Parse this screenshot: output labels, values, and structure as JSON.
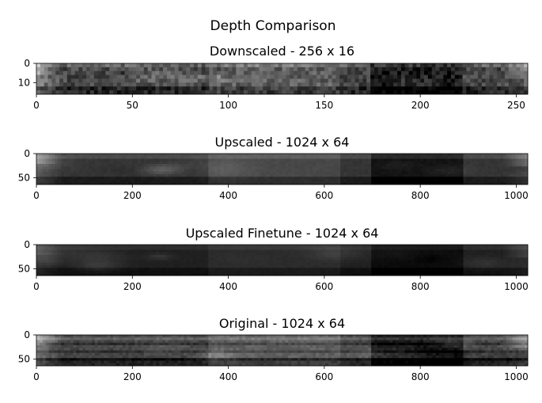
{
  "figure": {
    "title": "Depth Comparison"
  },
  "chart_data": [
    {
      "type": "heatmap",
      "title": "Downscaled - 256 x 16",
      "xlabel": "",
      "ylabel": "",
      "colormap": "gray",
      "width": 256,
      "height": 16,
      "xlim": [
        0,
        256
      ],
      "ylim": [
        16,
        0
      ],
      "xticks": [
        0,
        50,
        100,
        150,
        200,
        250
      ],
      "yticks": [
        0,
        10
      ],
      "brightness": 1.0,
      "noise": "coarse"
    },
    {
      "type": "heatmap",
      "title": "Upscaled - 1024 x 64",
      "xlabel": "",
      "ylabel": "",
      "colormap": "gray",
      "width": 1024,
      "height": 64,
      "xlim": [
        0,
        1024
      ],
      "ylim": [
        64,
        0
      ],
      "xticks": [
        0,
        200,
        400,
        600,
        800,
        1000
      ],
      "yticks": [
        0,
        50
      ],
      "brightness": 0.75,
      "noise": "smooth"
    },
    {
      "type": "heatmap",
      "title": "Upscaled Finetune - 1024 x 64",
      "xlabel": "",
      "ylabel": "",
      "colormap": "gray",
      "width": 1024,
      "height": 64,
      "xlim": [
        0,
        1024
      ],
      "ylim": [
        64,
        0
      ],
      "xticks": [
        0,
        200,
        400,
        600,
        800,
        1000
      ],
      "yticks": [
        0,
        50
      ],
      "brightness": 0.45,
      "noise": "smooth"
    },
    {
      "type": "heatmap",
      "title": "Original - 1024 x 64",
      "xlabel": "",
      "ylabel": "",
      "colormap": "gray",
      "width": 1024,
      "height": 64,
      "xlim": [
        0,
        1024
      ],
      "ylim": [
        64,
        0
      ],
      "xticks": [
        0,
        200,
        400,
        600,
        800,
        1000
      ],
      "yticks": [
        0,
        50
      ],
      "brightness": 1.0,
      "noise": "striped"
    }
  ]
}
